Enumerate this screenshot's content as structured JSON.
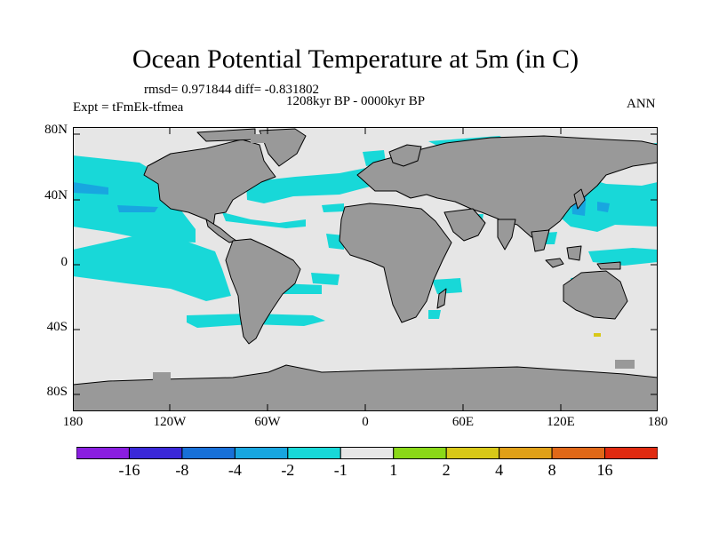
{
  "title": "Ocean Potential Temperature at 5m (in C)",
  "stats": "rmsd= 0.971844 diff= -0.831802",
  "period": "1208kyr BP - 0000kyr BP",
  "experiment": "Expt = tFmEk-tfmea",
  "season": "ANN",
  "axes": {
    "y_labels": [
      "80N",
      "40N",
      "0",
      "40S",
      "80S"
    ],
    "x_labels": [
      "180",
      "120W",
      "60W",
      "0",
      "60E",
      "120E",
      "180"
    ]
  },
  "colorbar": {
    "labels": [
      "-16",
      "-8",
      "-4",
      "-2",
      "-1",
      "1",
      "2",
      "4",
      "8",
      "16"
    ],
    "colors": [
      "#8a1ee0",
      "#3a28d8",
      "#1870d8",
      "#18a6e0",
      "#18d8d8",
      "#e6e6e6",
      "#8ad818",
      "#d8c818",
      "#e0a018",
      "#e06818",
      "#e02a10"
    ]
  },
  "map_colors": {
    "land": "#999999",
    "ocean_neutral": "#e6e6e6",
    "cool_1_2": "#18d8d8",
    "cool_2_4": "#18a6e0",
    "warm_1_2": "#8ad818",
    "warm_2_4": "#d8c818"
  }
}
